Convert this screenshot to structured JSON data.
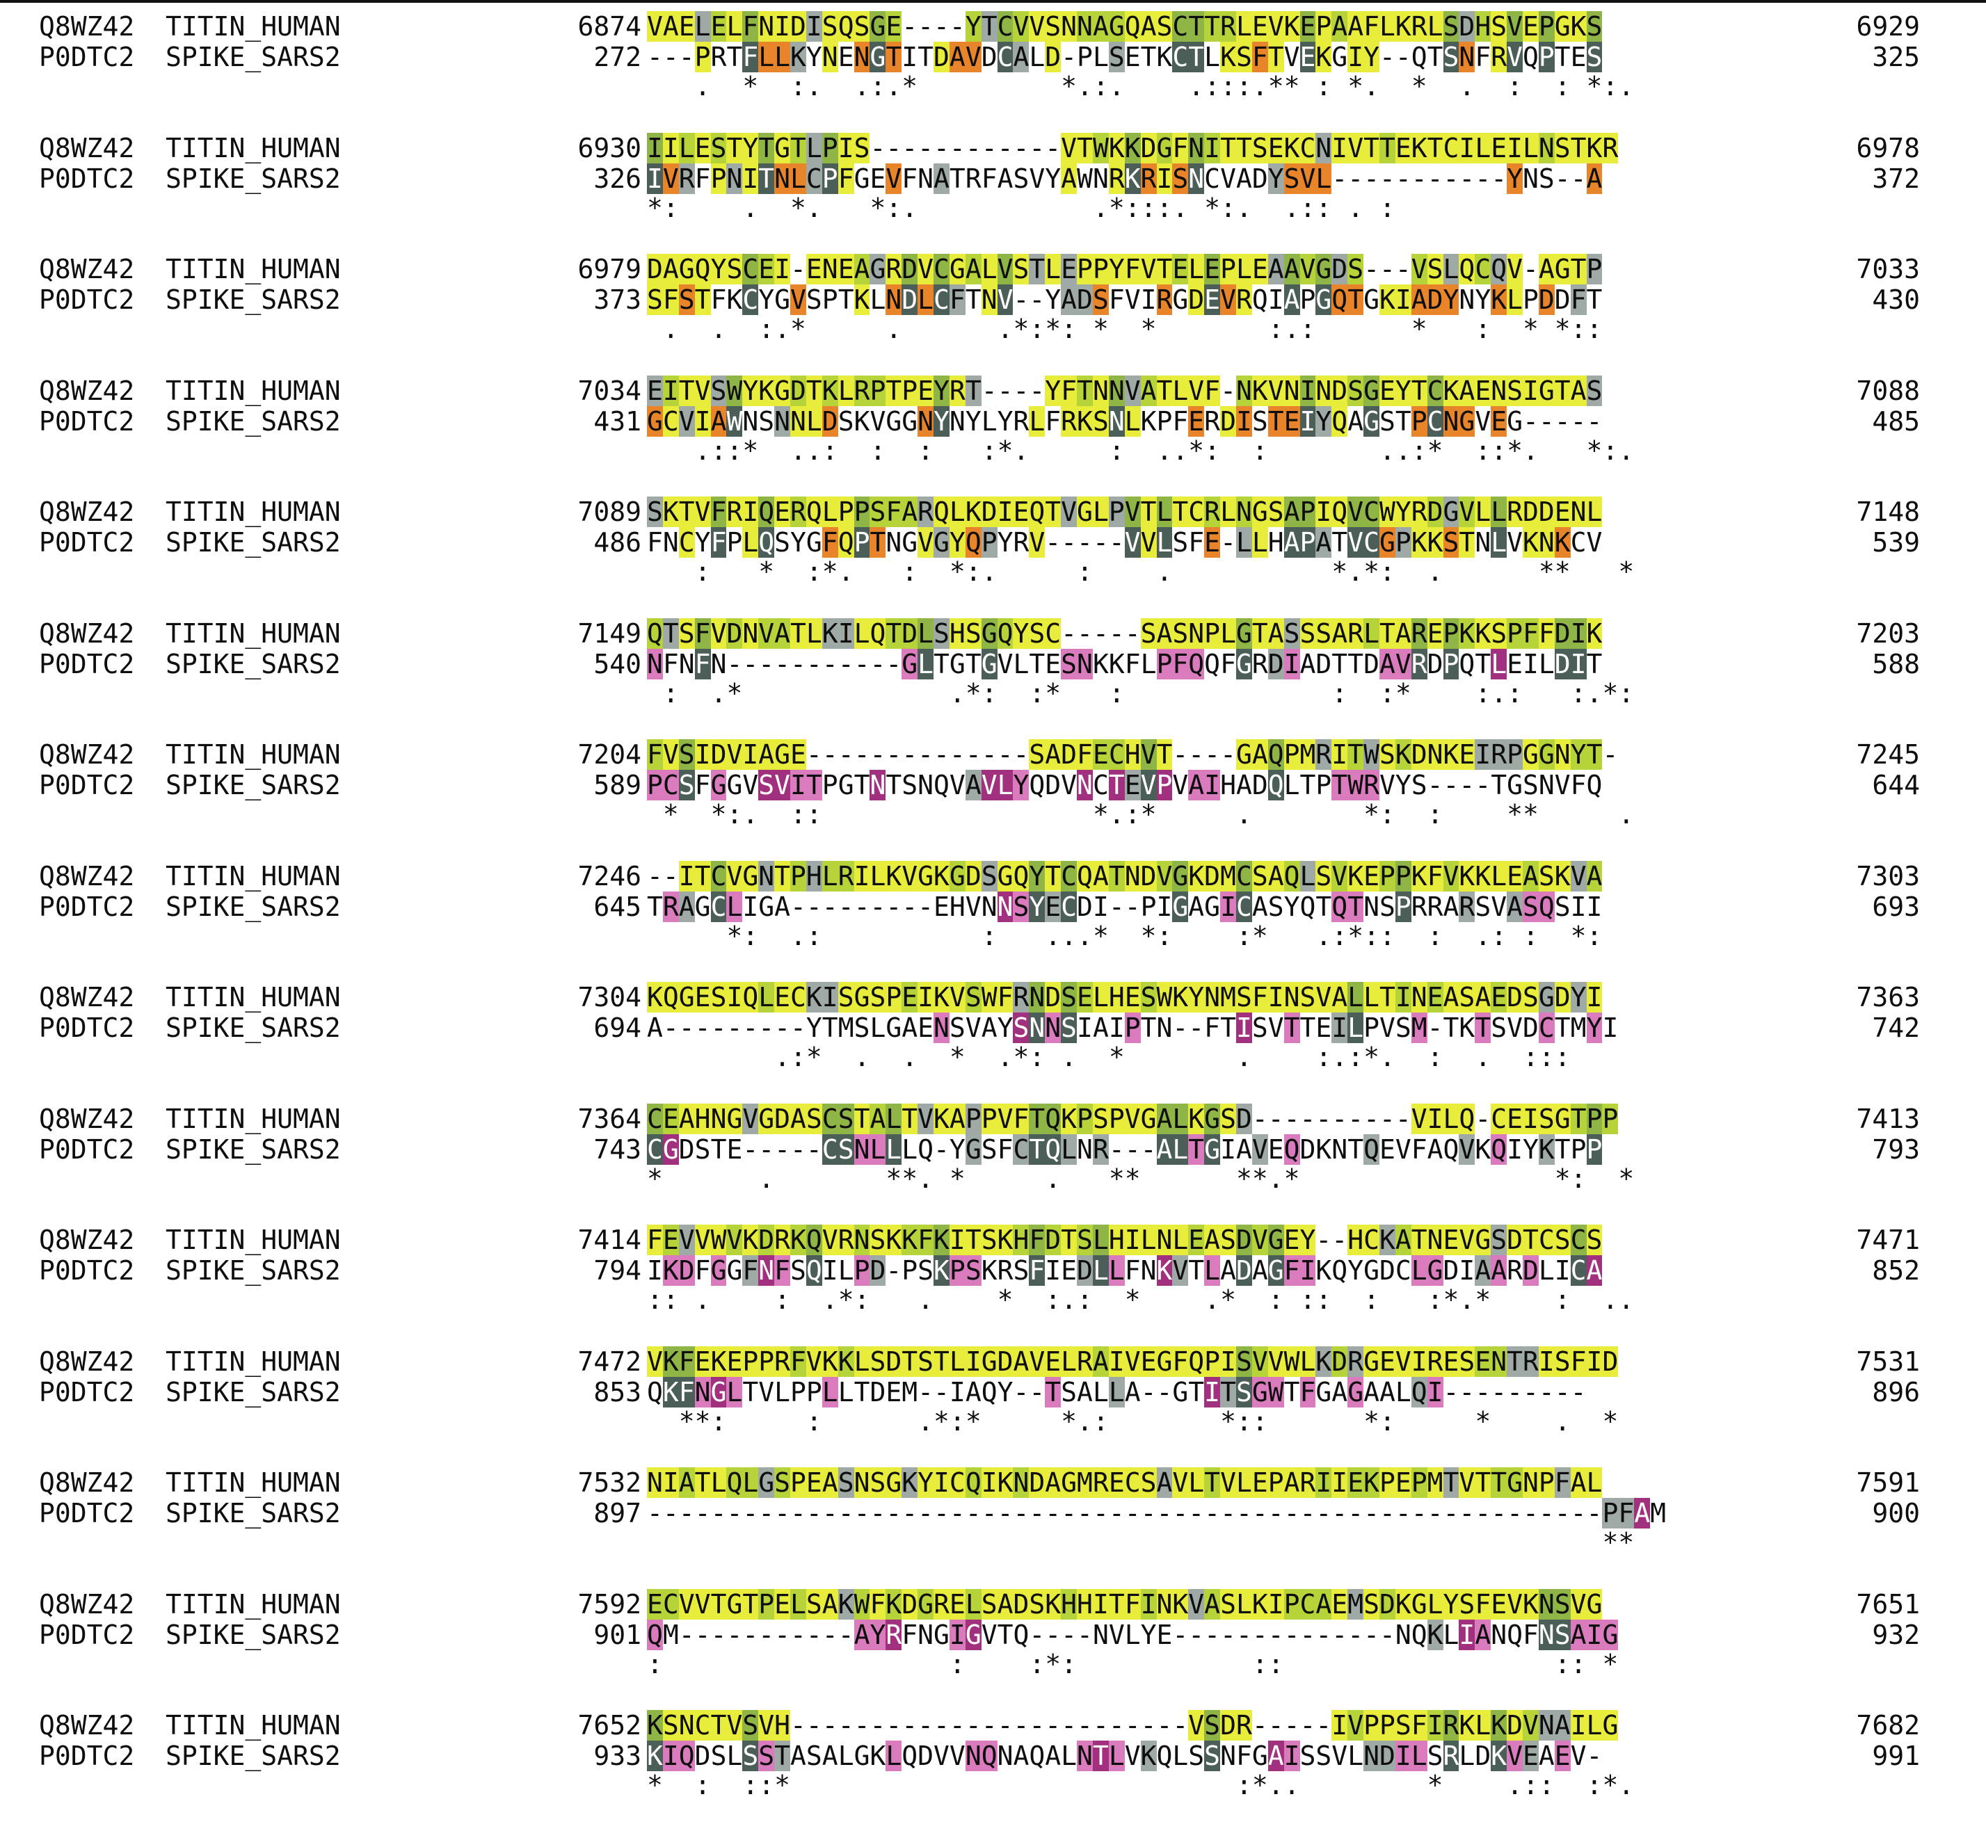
{
  "alignment": {
    "sequences": [
      {
        "accession": "Q8WZ42",
        "name": "TITIN_HUMAN"
      },
      {
        "accession": "P0DTC2",
        "name": "SPIKE_SARS2"
      }
    ],
    "blocks": [
      {
        "s1_start": "6874",
        "s1_seq": "VAELELFNIDISQSGE----YTCVVSNNAGQASCTTRLEVKEPAAFLKRLSDHSVEPGKS",
        "s1_end": "6929",
        "s2_start": "272",
        "s2_seq": "---PRTFLLKYNENGTITDAVDCALD-PLSETKCTLKSFTVEKGIY--QTSNFRVQPTES",
        "s2_end": "325",
        "consensus": "   .  *  :.  .:.*         *.:.    .:::.** : *.  *  .  :  : *:.  *:* :*"
      },
      {
        "s1_start": "6930",
        "s1_seq": "IILESTYTGTLPIS------------VTWKKDGFNITTSEKCNIVTTEKTCILEILNSTKR",
        "s1_end": "6978",
        "s2_start": "326",
        "s2_seq": "IVRFPNITNLCPFGEVFNATRFASVYAWNRKRISNCVADYSVL-----------YNS--A",
        "s2_end": "372",
        "consensus": "*:    .  *.   *:.           .*:::. *:.  .:: . :                **"
      },
      {
        "s1_start": "6979",
        "s1_seq": "DAGQYSCEI-ENEAGRDVCGALVSTLEPPYFVTELEPLEAAVGDS---VSLQCQV-AGTP",
        "s1_end": "7033",
        "s2_start": "373",
        "s2_seq": "SFSTFKCYGVSPTKLNDLCFTNV--YADSFVIRGDEVRQIAPGQTGKIADYNYKLPDDFT",
        "s2_end": "430",
        "consensus": " .  .  :.*     .      .*:*: *  *       :.:      *   :  * *::        ..  :  ::    ."
      },
      {
        "s1_start": "7034",
        "s1_seq": "EITVSWYKGDTKLRPTPEYRT----YFTNNVATLVF-NKVNINDSGEYTCKAENSIGTAS",
        "s1_end": "7088",
        "s2_start": "431",
        "s2_seq": "GCVIAWNSNNLDSKVGGNYNYLYRLFRKSNLKPFERDISTEIYQAGSTPCNGVEG-----",
        "s2_end": "485",
        "consensus": "   .::*  ..:  :  :   :*.     :  ..*:  :       ..:*  ::*.   *:.  :"
      },
      {
        "s1_start": "7089",
        "s1_seq": "SKTVFRIQERQLPPSFARQLKDIEQTVGLPVTLTCRLNGSAPIQVCWYRDGVLLRDDENL",
        "s1_end": "7148",
        "s2_start": "486",
        "s2_seq": "FNCYFPLQSYGFQPTNGVGYQPYRV-----VVLSFE-LLHAPATVCGPKKSTNLVKNKCV",
        "s2_end": "539",
        "consensus": "   :   *  :*.   :  *:.     :    .          *.*:  .      **   **     :...  *  .:: :"
      },
      {
        "s1_start": "7149",
        "s1_seq": "QTSFVDNVATLKILQTDLSHSGQYSC-----SASNPLGTASSSARLTAREPKKSPFFDIK",
        "s1_end": "7203",
        "s2_start": "540",
        "s2_seq": "NFNFN-----------GLTGTGVLTESNKKFLPFQQFGRDIADTTDAVRDPQTLEILDIT",
        "s2_end": "588",
        "consensus": " :  .*             .*:  :*   :             :  :*    :.:   :.*:*:.   ::**."
      },
      {
        "s1_start": "7204",
        "s1_seq": "FVSIDVIAGE--------------SADFECHVT----GAQPMRITWSKDNKEIRPGGNYT-",
        "s1_end": "7245",
        "s2_start": "589",
        "s2_seq": "PCSFGGVSVITPGTNTSNQVAVLYQDVNCTEVPVAIHADQLTPTWRVYS----TGSNVFQ",
        "s2_end": "644",
        "consensus": " *  *:.  ::                 *.:*     .       *:  :    **     .       *.*"
      },
      {
        "s1_start": "7246",
        "s1_seq": "--ITCVGNTPHLRILKVGKGDSGQYTCQATNDVGKDMCSAQLSVKEPPKFVKKLEASKVA",
        "s1_end": "7303",
        "s2_start": "645",
        "s2_seq": "TRAGCLIGA---------EHVNNSYECDI--PIGAGICASYQTQTNSPRRARSVASQSII",
        "s2_end": "693",
        "consensus": "     *:  .:          :   ...*  *:    :*   .:*::  :  .: :  *:   .:: :.:"
      },
      {
        "s1_start": "7304",
        "s1_seq": "KQGESIQLECKISGSPEIKVSWFRNDSELHESWKYNMSFINSVALLTINEASAEDSGDYI",
        "s1_end": "7363",
        "s2_start": "694",
        "s2_seq": "A---------YTMSLGAENSVAYSNNSIAIPTN--FTISVTTEILPVSM-TKTSVDCTMYI",
        "s2_end": "742",
        "consensus": "        .:*  .  .  *  .*: .  *       .    :.:*.  :  .  :::    ::  *.   **"
      },
      {
        "s1_start": "7364",
        "s1_seq": "CEAHNGVGDASCSTALTVKAPPVFTQKPSPVGALKGSD----------VILQ-CEISGTPP",
        "s1_end": "7413",
        "s2_start": "743",
        "s2_seq": "CGDSTE-----CSNLLLQ-YGSFCTQLNR---ALTGIAVEQDKNTQEVFAQVKQIYKTPP",
        "s2_end": "793",
        "consensus": "*      .       **. *     .   **      **.*                *:  *    :*   ***"
      },
      {
        "s1_start": "7414",
        "s1_seq": "FEVVWVKDRKQVRNSKKFKITSKHFDTSLHILNLEASDVGEY--HCKATNEVGSDTCSCS",
        "s1_end": "7471",
        "s2_start": "794",
        "s2_seq": "IKDFGGFNFSQILPD-PSKPSKRSFIEDLLFNKVTLADAGFIKQYGDCLGDIAARDLICA",
        "s2_end": "852",
        "consensus": ":: .    :  .*:   .    *  :.:  *    .*  : ::  :   :*.*    :  ..   .:::.     *:"
      },
      {
        "s1_start": "7472",
        "s1_seq": "VKFEKEPPRFVKKLSDTSTLIGDAVELRAIVEGFQPISVVWLKDRGEVIRESENTRISFID",
        "s1_end": "7531",
        "s2_start": "853",
        "s2_seq": "QKFNGLTVLPPLLTDEM--IAQY--TSALLA--GTITSGWTFGAGAALQI---------",
        "s2_end": "896",
        "consensus": "  **:     :      .*:*     *.:       *::      *:     *    .  *   .::"
      },
      {
        "s1_start": "7532",
        "s1_seq": "NIATLQLGSPEASNSGKYICQIKNDAGMRECSAVLTVLEPARIIEKPEPMTVTTGNPFAL",
        "s1_end": "7591",
        "s2_start": "897",
        "s2_seq": "------------------------------------------------------------PFAM",
        "s2_end": "900",
        "consensus": "                                                            ***:"
      },
      {
        "s1_start": "7592",
        "s1_seq": "ECVVTGTPELSAKWFKDGRELSADSKHHITFINKVASLKIPCAEMSDKGLYSFEVKNSVG",
        "s1_end": "7651",
        "s2_start": "901",
        "s2_seq": "QM-----------AYRFNGIGVTQ----NVLYE--------------NQKLIANQFNSAIG",
        "s2_end": "932",
        "consensus": ":                  :    :*:           ::                 :: *  : *.:.::*"
      },
      {
        "s1_start": "7652",
        "s1_seq": "KSNCTVSVH-------------------------VSDR-----IVPPSFIRKLKDVNAILG",
        "s1_end": "7682",
        "s2_start": "933",
        "s2_seq": "KIQDSLSSTASALGKLQDVVNQNAQALNTLVKQLSSNFGAISSVLNDILSRLDKVEAEV-",
        "s2_end": "991",
        "consensus": "*  :  ::*                            :*..        *    .::  :*..:*  :"
      }
    ]
  },
  "colors": {
    "yellow": "#e8ec3a",
    "light_green": "#b6d33a",
    "green": "#8fb546",
    "orange": "#e8852a",
    "pink": "#d97bbd",
    "magenta": "#a1307e",
    "gray": "#9fa9a6",
    "dark_gray": "#4c5e58"
  }
}
